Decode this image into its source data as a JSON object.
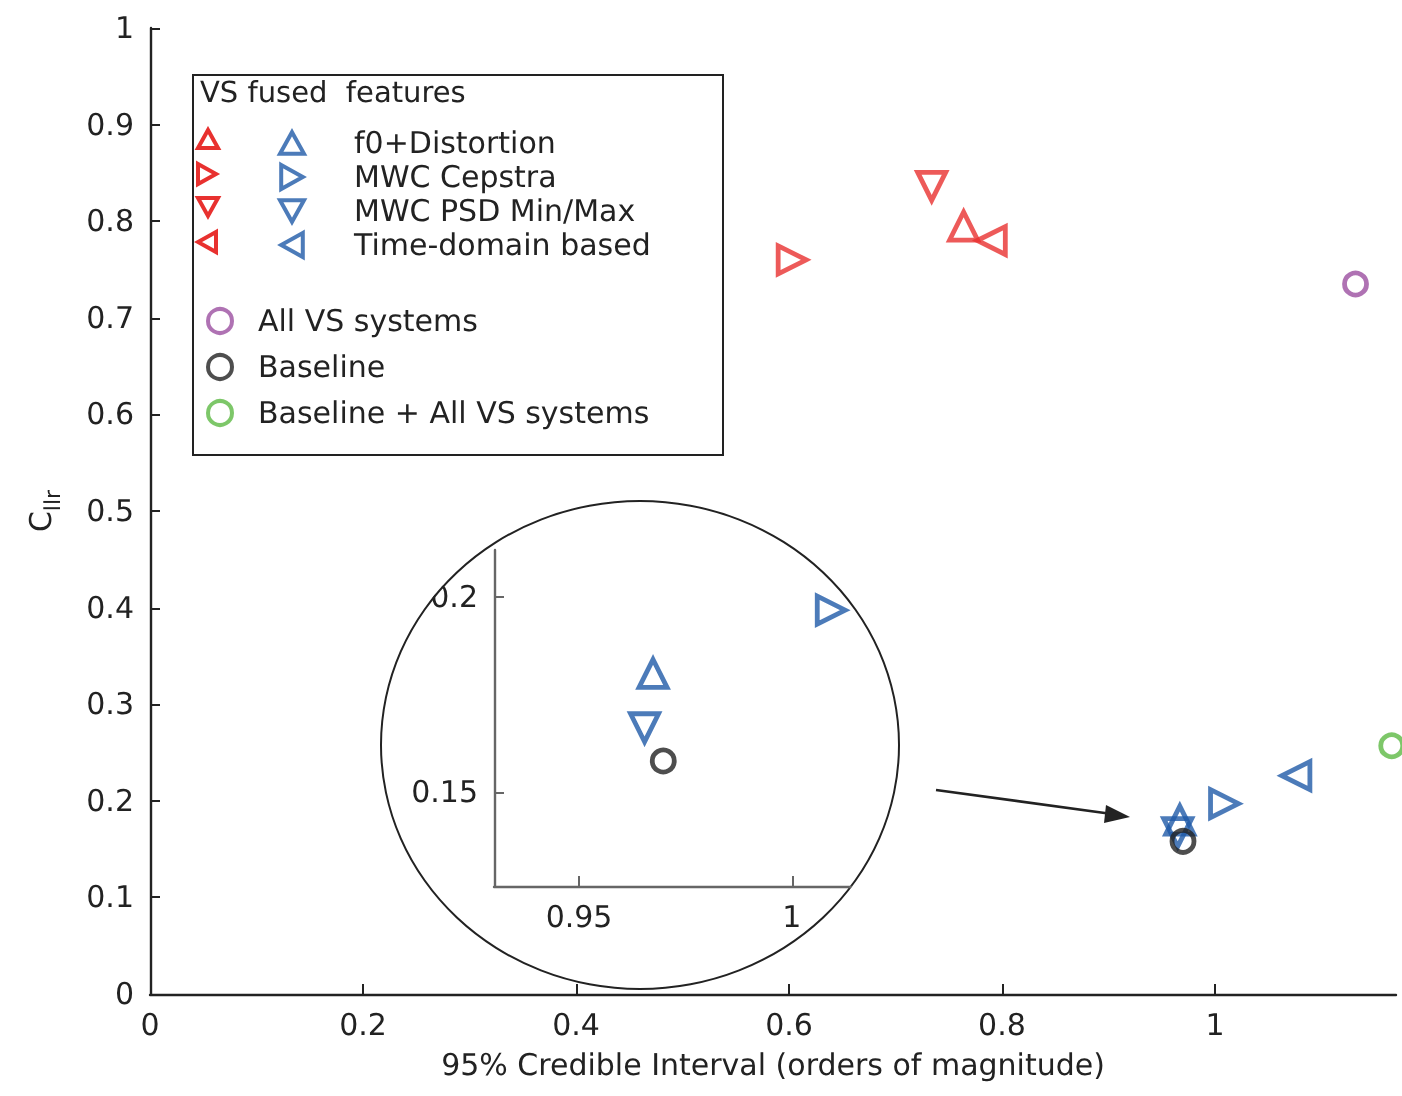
{
  "chart_data": [
    {
      "type": "scatter",
      "xlabel": "95% Credible Interval (orders of magnitude)",
      "ylabel": "C$_{llr}$",
      "legend_title": "VS fused  features",
      "legend": "top left",
      "grid": false,
      "xlim": [
        0,
        1.17
      ],
      "xticks": [
        0,
        0.2,
        0.4,
        0.6,
        0.8,
        1
      ],
      "ylim": [
        0,
        1
      ],
      "yticks": [
        0,
        0.1,
        0.2,
        0.3,
        0.4,
        0.5,
        0.6,
        0.7,
        0.8,
        0.9,
        1
      ],
      "series": [
        {
          "name": "f0+Distortion",
          "colors": [
            "#e8312f",
            "#1f5aa8"
          ],
          "marker": "triangle",
          "x": [
            0.764,
            0.967
          ],
          "values": [
            0.795,
            0.18
          ]
        },
        {
          "name": "MWC Cepstra",
          "colors": [
            "#e8312f",
            "#1f5aa8"
          ],
          "marker": "triangle-right",
          "x": [
            0.603,
            1.009
          ],
          "values": [
            0.76,
            0.197
          ]
        },
        {
          "name": "MWC PSD Min/Max",
          "colors": [
            "#e8312f",
            "#1f5aa8"
          ],
          "marker": "triangle-down",
          "x": [
            0.734,
            0.965
          ],
          "values": [
            0.836,
            0.167
          ]
        },
        {
          "name": "Time-domain based",
          "colors": [
            "#e8312f",
            "#1f5aa8"
          ],
          "marker": "triangle-left",
          "x": [
            0.79,
            1.076
          ],
          "values": [
            0.78,
            0.226
          ]
        },
        {
          "name": "All VS systems",
          "color": "#9b4fa0",
          "marker": "circle",
          "x": [
            1.132
          ],
          "values": [
            0.735
          ]
        },
        {
          "name": "Baseline",
          "color": "#222222",
          "marker": "circle",
          "x": [
            0.97
          ],
          "values": [
            0.158
          ]
        },
        {
          "name": "Baseline + All VS systems",
          "color": "#5cb944",
          "marker": "circle",
          "x": [
            1.166
          ],
          "values": [
            0.257
          ]
        }
      ]
    },
    {
      "type": "scatter",
      "xlim": [
        0.93,
        1.017
      ],
      "xticks": [
        0.95,
        1
      ],
      "ylim": [
        0.126,
        0.212
      ],
      "yticks": [
        0.15,
        0.2
      ],
      "series": [
        {
          "color": "#1f5aa8",
          "marker": "triangle",
          "x": [
            0.9674
          ],
          "values": [
            0.1804
          ]
        },
        {
          "color": "#1f5aa8",
          "marker": "triangle-right",
          "x": [
            1.0093
          ],
          "values": [
            0.1966
          ]
        },
        {
          "color": "#1f5aa8",
          "marker": "triangle-down",
          "x": [
            0.9654
          ],
          "values": [
            0.1665
          ]
        },
        {
          "color": "#222222",
          "marker": "circle",
          "x": [
            0.9698
          ],
          "values": [
            0.158
          ]
        }
      ]
    }
  ]
}
